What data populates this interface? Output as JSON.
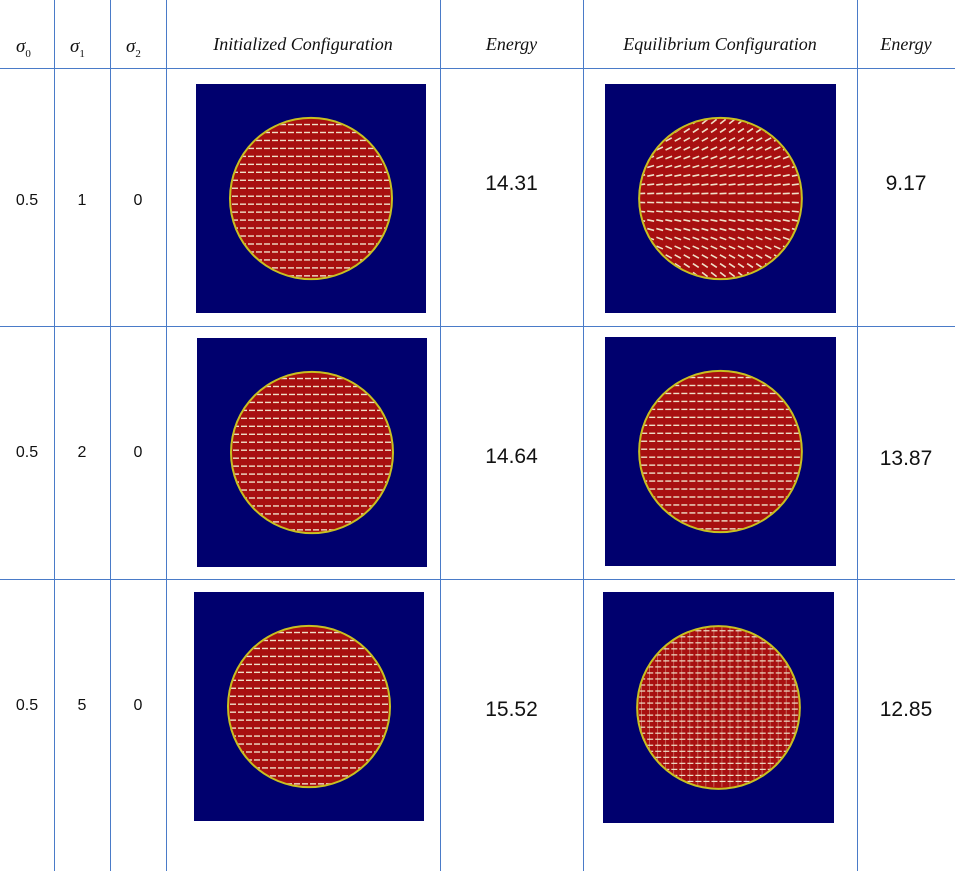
{
  "header": {
    "sigma0": "σ",
    "sigma0_sub": "0",
    "sigma1": "σ",
    "sigma1_sub": "1",
    "sigma2": "σ",
    "sigma2_sub": "2",
    "initialized": "Initialized Configuration",
    "energy1": "Energy",
    "equilibrium": "Equilibrium Configuration",
    "energy2": "Energy"
  },
  "rows": [
    {
      "sigma0": "0.5",
      "sigma1": "1",
      "sigma2": "0",
      "energy_initial": "14.31",
      "energy_equilibrium": "9.17"
    },
    {
      "sigma0": "0.5",
      "sigma1": "2",
      "sigma2": "0",
      "energy_initial": "14.64",
      "energy_equilibrium": "13.87"
    },
    {
      "sigma0": "0.5",
      "sigma1": "5",
      "sigma2": "0",
      "energy_initial": "15.52",
      "energy_equilibrium": "12.85"
    }
  ],
  "colors": {
    "grid_line": "#4a7bc8",
    "background_field": "#00006e",
    "disk_fill": "#a81010",
    "disk_edge": "#c8c020",
    "stripe": "#f0e0c8"
  },
  "plot_patterns": {
    "initial": [
      "horizontal-stripes",
      "horizontal-stripes",
      "horizontal-stripes"
    ],
    "equilibrium": [
      "radial-dashes",
      "horizontal-stripes",
      "grid"
    ]
  }
}
